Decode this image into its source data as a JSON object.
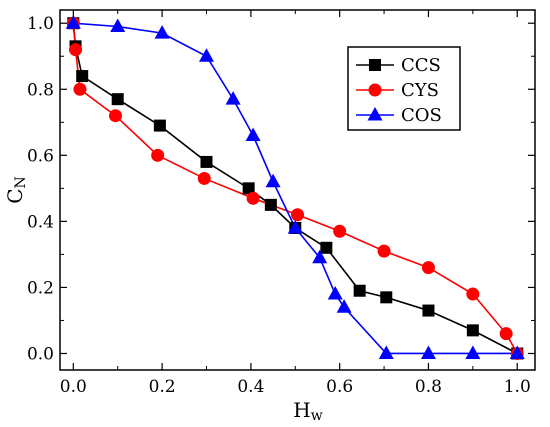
{
  "chart_data": {
    "type": "line",
    "xlabel_main": "H",
    "xlabel_sub": "w",
    "ylabel_main": "C",
    "ylabel_sub": "N",
    "xlim": [
      -0.03,
      1.04
    ],
    "ylim": [
      -0.05,
      1.04
    ],
    "xticks": [
      0.0,
      0.2,
      0.4,
      0.6,
      0.8,
      1.0
    ],
    "yticks": [
      0.0,
      0.2,
      0.4,
      0.6,
      0.8,
      1.0
    ],
    "xtick_labels": [
      "0.0",
      "0.2",
      "0.4",
      "0.6",
      "0.8",
      "1.0"
    ],
    "ytick_labels": [
      "0.0",
      "0.2",
      "0.4",
      "0.6",
      "0.8",
      "1.0"
    ],
    "grid": false,
    "legend_position": "top-right",
    "series": [
      {
        "name": "CCS",
        "color": "#000000",
        "marker": "square",
        "x": [
          0.0,
          0.005,
          0.02,
          0.1,
          0.195,
          0.3,
          0.395,
          0.445,
          0.5,
          0.57,
          0.645,
          0.705,
          0.8,
          0.9,
          1.0
        ],
        "y": [
          1.0,
          0.93,
          0.84,
          0.77,
          0.69,
          0.58,
          0.5,
          0.45,
          0.38,
          0.32,
          0.19,
          0.17,
          0.13,
          0.07,
          0.0
        ]
      },
      {
        "name": "CYS",
        "color": "#ff0000",
        "marker": "circle",
        "x": [
          0.0,
          0.005,
          0.015,
          0.095,
          0.19,
          0.295,
          0.405,
          0.505,
          0.6,
          0.7,
          0.8,
          0.9,
          0.975,
          1.0
        ],
        "y": [
          1.0,
          0.92,
          0.8,
          0.72,
          0.6,
          0.53,
          0.47,
          0.42,
          0.37,
          0.31,
          0.26,
          0.18,
          0.06,
          0.0
        ]
      },
      {
        "name": "COS",
        "color": "#0000ff",
        "marker": "triangle",
        "x": [
          0.0,
          0.1,
          0.2,
          0.3,
          0.36,
          0.405,
          0.45,
          0.5,
          0.555,
          0.59,
          0.61,
          0.705,
          0.8,
          0.9,
          1.0
        ],
        "y": [
          1.0,
          0.99,
          0.97,
          0.9,
          0.77,
          0.66,
          0.52,
          0.38,
          0.29,
          0.18,
          0.14,
          0.0,
          0.0,
          0.0,
          0.0
        ]
      }
    ]
  }
}
